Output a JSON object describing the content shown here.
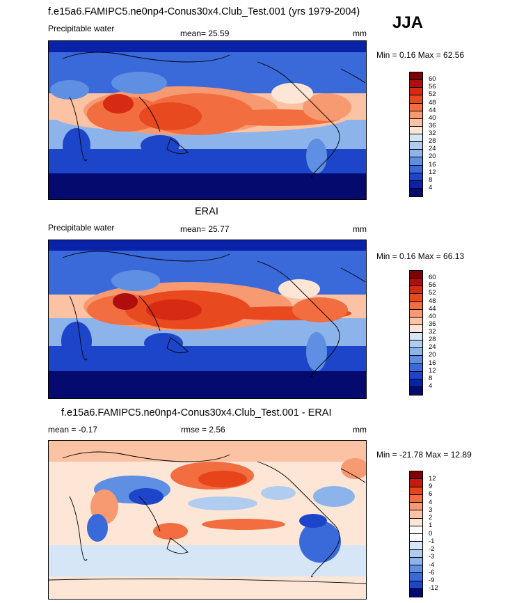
{
  "header": {
    "title": "f.e15a6.FAMIPC5.ne0np4-Conus30x4.Club_Test.001 (yrs 1979-2004)",
    "season": "JJA"
  },
  "panels": [
    {
      "variable": "Precipitable water",
      "stat1": "mean=  25.59",
      "units": "mm",
      "minmax": "Min =   0.16 Max =  62.56",
      "ticks": [
        "60",
        "56",
        "52",
        "48",
        "44",
        "40",
        "36",
        "32",
        "28",
        "24",
        "20",
        "16",
        "12",
        "8",
        "4"
      ]
    },
    {
      "subtitle": "ERAI",
      "variable": "Precipitable water",
      "stat1": "mean=  25.77",
      "units": "mm",
      "minmax": "Min =   0.16 Max =  66.13",
      "ticks": [
        "60",
        "56",
        "52",
        "48",
        "44",
        "40",
        "36",
        "32",
        "28",
        "24",
        "20",
        "16",
        "12",
        "8",
        "4"
      ]
    },
    {
      "subtitle": "f.e15a6.FAMIPC5.ne0np4-Conus30x4.Club_Test.001 - ERAI",
      "stat1": "mean =  -0.17",
      "stat2": "rmse =   2.56",
      "units": "mm",
      "minmax": "Min = -21.78 Max =  12.89",
      "ticks": [
        "12",
        "9",
        "6",
        "4",
        "3",
        "2",
        "1",
        "0",
        "-1",
        "-2",
        "-3",
        "-4",
        "-6",
        "-9",
        "-12"
      ]
    }
  ],
  "colors": {
    "field_scale": [
      "#7f0000",
      "#b00e0e",
      "#d62a12",
      "#e8491f",
      "#f26d3f",
      "#f79a72",
      "#fbc3a4",
      "#fde6d6",
      "#d6e6f7",
      "#b0cdef",
      "#8db4ea",
      "#5f8fe3",
      "#3a69d9",
      "#1d45c9",
      "#0a22a8",
      "#050a6e"
    ],
    "diff_scale": [
      "#7f0000",
      "#c21a0b",
      "#e8441c",
      "#f26d3f",
      "#f79a72",
      "#fbc3a4",
      "#fde6d6",
      "#ffffff",
      "#ffffff",
      "#d6e6f7",
      "#b0cdef",
      "#8db4ea",
      "#5f8fe3",
      "#3a69d9",
      "#1d45c9",
      "#050a6e"
    ]
  }
}
